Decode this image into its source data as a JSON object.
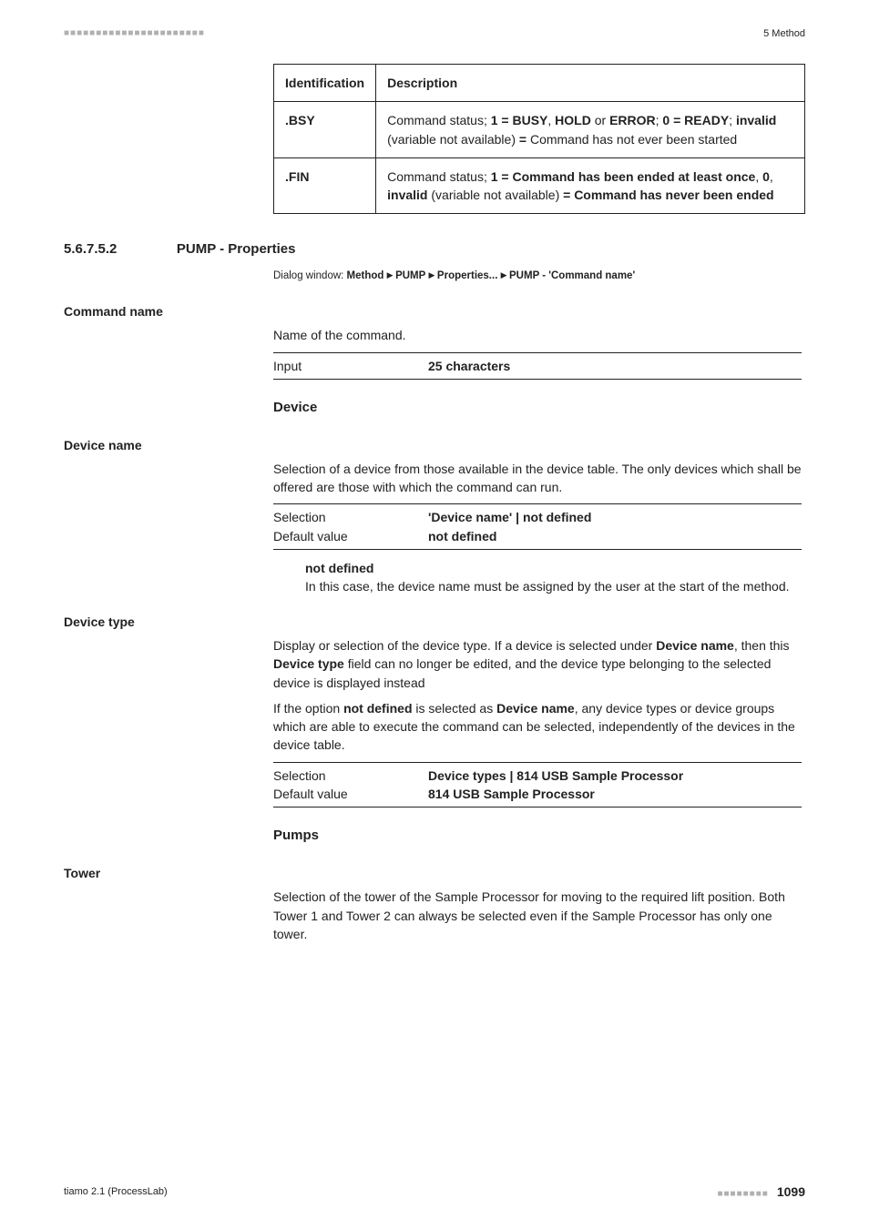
{
  "meta": {
    "header_right": "5 Method",
    "footer_left": "tiamo 2.1 (ProcessLab)",
    "page_number": "1099"
  },
  "table": {
    "headers": [
      "Identification",
      "Description"
    ],
    "rows": [
      {
        "id": ".BSY",
        "desc_parts": [
          {
            "t": "Command status; ",
            "b": false
          },
          {
            "t": "1 = BUSY",
            "b": true
          },
          {
            "t": ", ",
            "b": false
          },
          {
            "t": "HOLD",
            "b": true
          },
          {
            "t": " or ",
            "b": false
          },
          {
            "t": "ERROR",
            "b": true
          },
          {
            "t": "; ",
            "b": false
          },
          {
            "t": "0 = READY",
            "b": true
          },
          {
            "t": "; ",
            "b": false
          },
          {
            "t": "invalid",
            "b": true
          },
          {
            "t": " (variable not available) ",
            "b": false
          },
          {
            "t": "=",
            "b": true
          },
          {
            "t": " Command has not ever been started",
            "b": false
          }
        ]
      },
      {
        "id": ".FIN",
        "desc_parts": [
          {
            "t": "Command status; ",
            "b": false
          },
          {
            "t": "1 = Command has been ended at least once",
            "b": true
          },
          {
            "t": ", ",
            "b": false
          },
          {
            "t": "0",
            "b": true
          },
          {
            "t": ", ",
            "b": false
          },
          {
            "t": "invalid",
            "b": true
          },
          {
            "t": " (variable not available) ",
            "b": false
          },
          {
            "t": "= Command has never been ended",
            "b": true
          }
        ]
      }
    ]
  },
  "section": {
    "number": "5.6.7.5.2",
    "title": "PUMP - Properties",
    "dialog_prefix": "Dialog window: ",
    "dialog_parts": [
      "Method",
      "PUMP",
      "Properties...",
      "PUMP - 'Command name'"
    ]
  },
  "command_name": {
    "label": "Command name",
    "text": "Name of the command.",
    "input_key": "Input",
    "input_val": "25 characters"
  },
  "device_block": {
    "heading": "Device",
    "device_name": {
      "label": "Device name",
      "text": "Selection of a device from those available in the device table. The only devices which shall be offered are those with which the command can run.",
      "sel_key": "Selection",
      "sel_val": "'Device name' | not defined",
      "def_key": "Default value",
      "def_val": "not defined",
      "nd_label": "not defined",
      "nd_text": "In this case, the device name must be assigned by the user at the start of the method."
    },
    "device_type": {
      "label": "Device type",
      "p1_parts": [
        {
          "t": "Display or selection of the device type. If a device is selected under ",
          "b": false
        },
        {
          "t": "Device name",
          "b": true
        },
        {
          "t": ", then this ",
          "b": false
        },
        {
          "t": "Device type",
          "b": true
        },
        {
          "t": " field can no longer be edited, and the device type belonging to the selected device is displayed instead",
          "b": false
        }
      ],
      "p2_parts": [
        {
          "t": "If the option ",
          "b": false
        },
        {
          "t": "not defined",
          "b": true
        },
        {
          "t": " is selected as ",
          "b": false
        },
        {
          "t": "Device name",
          "b": true
        },
        {
          "t": ", any device types or device groups which are able to execute the command can be selected, independently of the devices in the device table.",
          "b": false
        }
      ],
      "sel_key": "Selection",
      "sel_val": "Device types | 814 USB Sample Processor",
      "def_key": "Default value",
      "def_val": "814 USB Sample Processor"
    }
  },
  "pumps_block": {
    "heading": "Pumps",
    "tower": {
      "label": "Tower",
      "text": "Selection of the tower of the Sample Processor for moving to the required lift position. Both Tower 1 and Tower 2 can always be selected even if the Sample Processor has only one tower."
    }
  }
}
